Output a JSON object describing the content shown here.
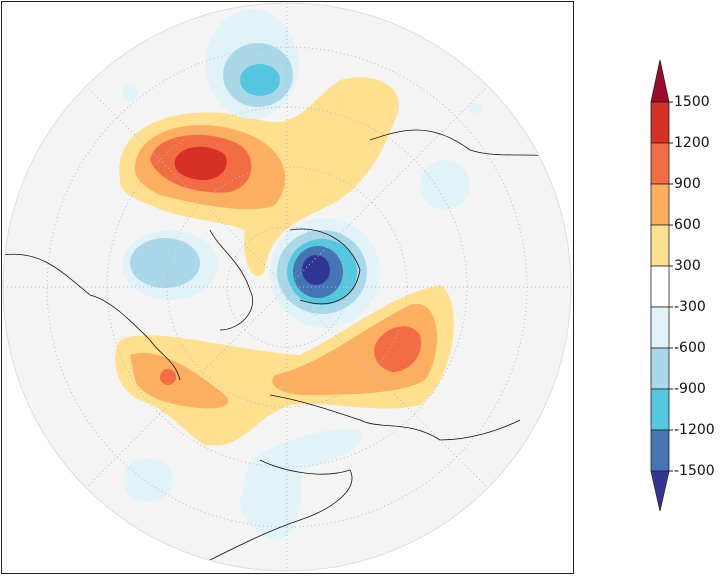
{
  "colorbar": {
    "labels": [
      "1500",
      "1200",
      "900",
      "600",
      "300",
      "-300",
      "-600",
      "-900",
      "-1200",
      "-1500"
    ],
    "colors": [
      "#9e0a28",
      "#d73027",
      "#f26d43",
      "#fcae61",
      "#fee08f",
      "#ffffff",
      "#e1f3f8",
      "#abd8e8",
      "#55c8e0",
      "#4575b4",
      "#313695"
    ]
  }
}
